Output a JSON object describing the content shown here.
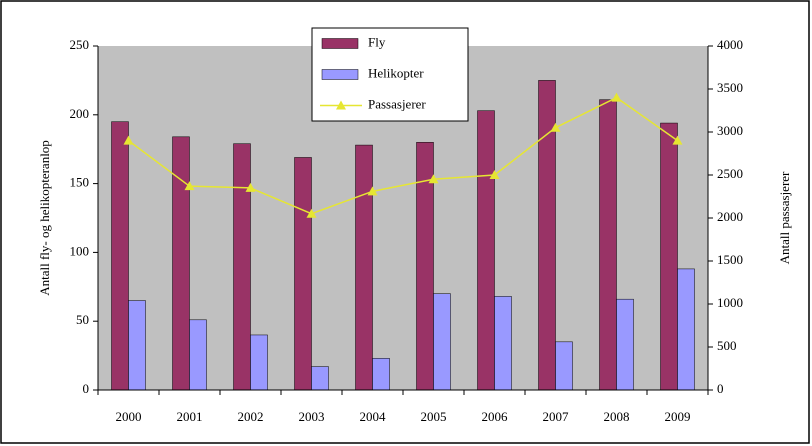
{
  "chart_data": {
    "type": "bar_line",
    "categories": [
      "2000",
      "2001",
      "2002",
      "2003",
      "2004",
      "2005",
      "2006",
      "2007",
      "2008",
      "2009"
    ],
    "series": [
      {
        "name": "Fly",
        "color": "#993366",
        "values": [
          195,
          184,
          179,
          169,
          178,
          180,
          203,
          225,
          211,
          194
        ]
      },
      {
        "name": "Helikopter",
        "color": "#9999ff",
        "values": [
          65,
          51,
          40,
          17,
          23,
          70,
          68,
          35,
          66,
          88
        ]
      },
      {
        "name": "Passasjerer",
        "color": "#e6e632",
        "axis": "y2",
        "type": "line",
        "values": [
          2900,
          2370,
          2350,
          2050,
          2310,
          2450,
          2500,
          3050,
          3400,
          2900
        ]
      }
    ],
    "ylabel": "Antall fly- og helikopteranlop",
    "y2label": "Antall passasjerer",
    "ylim": [
      0,
      250
    ],
    "yticks": [
      0,
      50,
      100,
      150,
      200,
      250
    ],
    "y2lim": [
      0,
      4000
    ],
    "y2ticks": [
      0,
      500,
      1000,
      1500,
      2000,
      2500,
      3000,
      3500,
      4000
    ],
    "plot_background": "#c0c0c0",
    "legend": "top"
  }
}
